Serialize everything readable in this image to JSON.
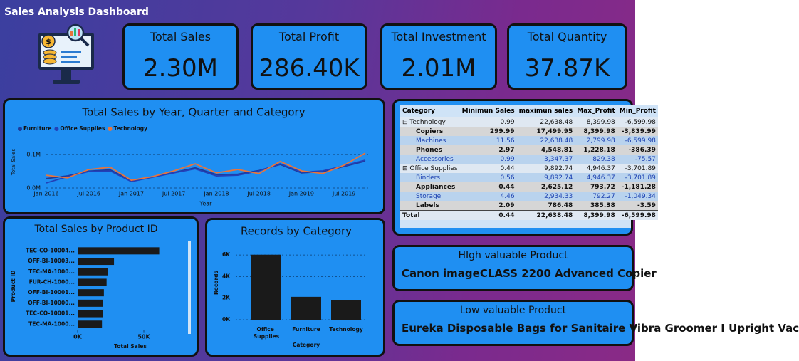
{
  "header": {
    "title": "Sales Analysis Dashboard"
  },
  "kpis": [
    {
      "label": "Total Sales",
      "value": "2.30M"
    },
    {
      "label": "Total Profit",
      "value": "286.40K"
    },
    {
      "label": "Total Investment",
      "value": "2.01M"
    },
    {
      "label": "Total Quantity",
      "value": "37.87K"
    }
  ],
  "table": {
    "columns": [
      "Category",
      "Minimun Sales",
      "maximun sales",
      "Max_Profit",
      "Min_Profit"
    ],
    "rows": [
      [
        "Technology",
        "0.99",
        "22,638.48",
        "8,399.98",
        "-6,599.98"
      ],
      [
        "Copiers",
        "299.99",
        "17,499.95",
        "8,399.98",
        "-3,839.99"
      ],
      [
        "Machines",
        "11.56",
        "22,638.48",
        "2,799.98",
        "-6,599.98"
      ],
      [
        "Phones",
        "2.97",
        "4,548.81",
        "1,228.18",
        "-386.39"
      ],
      [
        "Accessories",
        "0.99",
        "3,347.37",
        "829.38",
        "-75.57"
      ],
      [
        "Office Supplies",
        "0.44",
        "9,892.74",
        "4,946.37",
        "-3,701.89"
      ],
      [
        "Binders",
        "0.56",
        "9,892.74",
        "4,946.37",
        "-3,701.89"
      ],
      [
        "Appliances",
        "0.44",
        "2,625.12",
        "793.72",
        "-1,181.28"
      ],
      [
        "Storage",
        "4.46",
        "2,934.33",
        "792.27",
        "-1,049.34"
      ],
      [
        "Labels",
        "2.09",
        "786.48",
        "385.38",
        "-3.59"
      ],
      [
        "Total",
        "0.44",
        "22,638.48",
        "8,399.98",
        "-6,599.98"
      ]
    ]
  },
  "cards": [
    {
      "label": "HIgh valuable Product",
      "value": "Canon imageCLASS 2200 Advanced Copier"
    },
    {
      "label": "Low valuable Product",
      "value": "Eureka Disposable Bags for Sanitaire Vibra Groomer I Upright Vac"
    }
  ],
  "chart_data": [
    {
      "type": "line",
      "title": "Total Sales by Year, Quarter and Category",
      "categories": [
        "Jan 2016",
        null,
        "Jul 2016",
        null,
        "Jan 2017",
        null,
        "Jul 2017",
        null,
        "Jan 2018",
        null,
        "Jul 2018",
        null,
        "Jan 2019",
        null,
        "Jul 2019",
        null
      ],
      "series": [
        {
          "name": "Furniture",
          "color": "#1d3a9a",
          "values": [
            28000,
            36000,
            50000,
            54000,
            22000,
            33000,
            46000,
            60000,
            40000,
            41000,
            52000,
            70000,
            45000,
            49000,
            64000,
            80000
          ]
        },
        {
          "name": "Office Supplies",
          "color": "#2240b8",
          "values": [
            15000,
            34000,
            49000,
            51000,
            19000,
            32000,
            45000,
            57000,
            36000,
            38000,
            51000,
            72000,
            47000,
            51000,
            66000,
            83000
          ]
        },
        {
          "name": "Technology",
          "color": "#e8743b",
          "values": [
            38000,
            30000,
            55000,
            62000,
            23000,
            34000,
            51000,
            72000,
            45000,
            55000,
            43000,
            79000,
            51000,
            43000,
            68000,
            104000
          ]
        }
      ],
      "ylim": [
        0,
        155000
      ],
      "yticks": [
        {
          "value": 0,
          "label": "0.0M"
        },
        {
          "value": 100000,
          "label": "0.1M"
        }
      ],
      "x_label": "Year",
      "y_label": "Total Sales",
      "grid": true,
      "legend": "top-left"
    },
    {
      "type": "hbar",
      "title": "Total Sales by Product ID",
      "categories": [
        "TEC-CO-10004...",
        "OFF-BI-10003...",
        "TEC-MA-1000...",
        "FUR-CH-1000...",
        "OFF-BI-10001...",
        "OFF-BI-10000...",
        "TEC-CO-10001...",
        "TEC-MA-1000..."
      ],
      "values": [
        61600,
        27453,
        22638,
        21870,
        19823,
        19025,
        18840,
        18374
      ],
      "color": "#1a1a1a",
      "xlim": [
        0,
        80000
      ],
      "xticks": [
        {
          "value": 0,
          "label": "0K"
        },
        {
          "value": 50000,
          "label": "50K"
        }
      ],
      "x_label": "Total Sales",
      "y_label": "Product ID"
    },
    {
      "type": "bar",
      "title": "Records by Category",
      "categories": [
        "Office Supplies",
        "Furniture",
        "Technology"
      ],
      "values": [
        6026,
        2121,
        1847
      ],
      "color": "#1a1a1a",
      "ylim": [
        0,
        6800
      ],
      "yticks": [
        {
          "value": 0,
          "label": "0K"
        },
        {
          "value": 2000,
          "label": "2K"
        },
        {
          "value": 4000,
          "label": "4K"
        },
        {
          "value": 6000,
          "label": "6K"
        }
      ],
      "x_label": "Category",
      "y_label": "Records",
      "grid": true
    }
  ]
}
